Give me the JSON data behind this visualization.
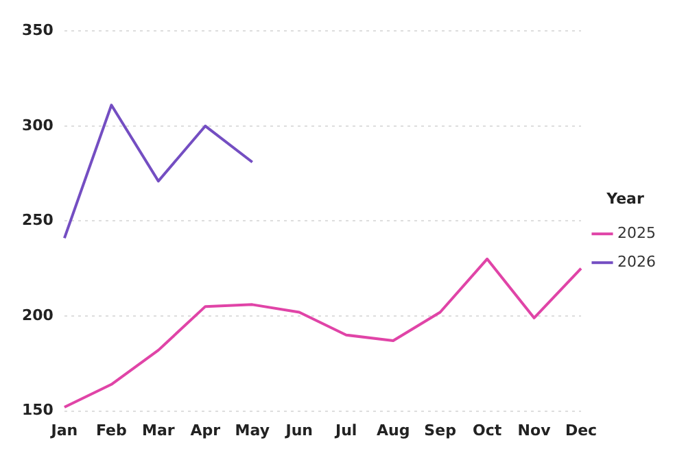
{
  "chart_data": {
    "type": "line",
    "legend_title": "Year",
    "categories": [
      "Jan",
      "Feb",
      "Mar",
      "Apr",
      "May",
      "Jun",
      "Jul",
      "Aug",
      "Sep",
      "Oct",
      "Nov",
      "Dec"
    ],
    "series": [
      {
        "name": "2025",
        "color": "#e044a7",
        "values": [
          152,
          164,
          182,
          205,
          206,
          202,
          190,
          187,
          202,
          230,
          199,
          225
        ]
      },
      {
        "name": "2026",
        "color": "#744ec2",
        "values": [
          241,
          311,
          271,
          300,
          281,
          null,
          null,
          null,
          null,
          null,
          null,
          null
        ]
      }
    ],
    "ylim": [
      150,
      350
    ],
    "yticks": [
      150,
      200,
      250,
      300,
      350
    ],
    "grid": "y",
    "legend": "right",
    "marker": "none",
    "line_style": "solid"
  }
}
